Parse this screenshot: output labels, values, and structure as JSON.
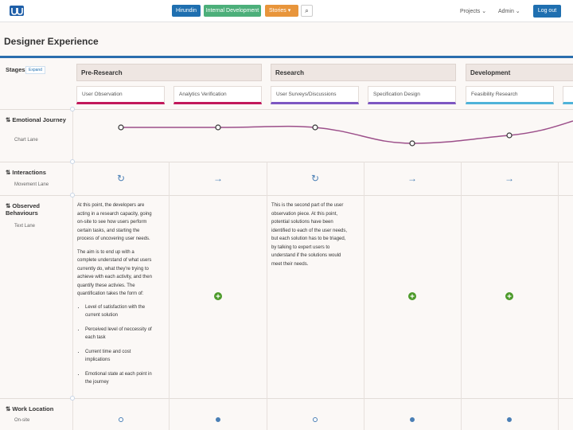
{
  "nav": {
    "tags": [
      "Hirundin",
      "Internal Development",
      "Stories"
    ],
    "links": [
      "Projects",
      "Admin"
    ],
    "logout": "Log out"
  },
  "title": "Designer Experience",
  "stages": {
    "label": "Stages",
    "expand": "Expand",
    "groups": [
      {
        "name": "Pre-Research",
        "substages": [
          "User Observation",
          "Analytics Verification"
        ]
      },
      {
        "name": "Research",
        "substages": [
          "User Surveys/Discussions",
          "Specification Design"
        ]
      },
      {
        "name": "Development",
        "substages": [
          "Feasibility Research"
        ]
      }
    ]
  },
  "lanes": [
    {
      "title": "Emotional Journey",
      "subtitle": "Chart Lane"
    },
    {
      "title": "Interactions",
      "subtitle": "Movement Lane"
    },
    {
      "title": "Observed Behaviours",
      "subtitle": "Text Lane"
    },
    {
      "title": "Work Location",
      "subtitle": "On-site"
    }
  ],
  "observations": [
    {
      "paragraphs": [
        "At this point, the developers are acting in a research capacity, going on-site to see how users perform certain tasks, and starting the process of uncovering user needs.",
        "The aim is to end up with a complete understand of what users currently do, what they're trying to achieve with each activity, and then quantify these activies. The quantification takes the form of:"
      ],
      "bullets": [
        "Level of satisfaction with the current solution",
        "Perceived level of neccessity of each task",
        "Current time and cost implications",
        "Emotional state at each point in the journey"
      ]
    },
    {
      "paragraphs": [
        "This is the second part of the user observation piece. At this point, potential solutions have been identified to each of the user needs, but each solution has to be triaged, by talking to expert users to understand if the solutions would meet their needs."
      ],
      "bullets": []
    }
  ]
}
